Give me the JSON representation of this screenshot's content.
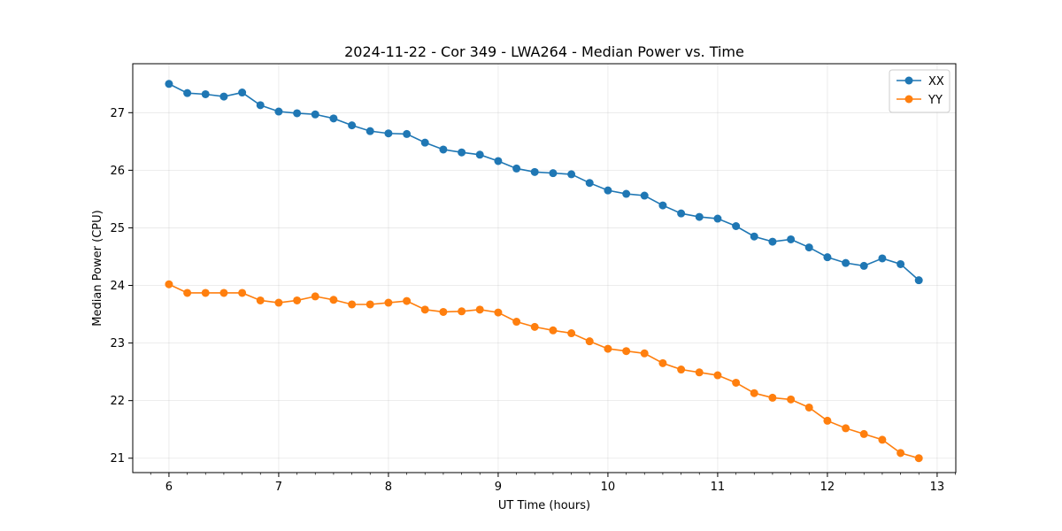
{
  "chart_data": {
    "type": "line",
    "title": "2024-11-22 - Cor 349 - LWA264 - Median Power vs. Time",
    "xlabel": "UT Time (hours)",
    "ylabel": "Median Power (CPU)",
    "xlim": [
      5.67,
      13.17
    ],
    "ylim": [
      20.75,
      27.85
    ],
    "xticks": [
      6,
      7,
      8,
      9,
      10,
      11,
      12,
      13
    ],
    "yticks": [
      21,
      22,
      23,
      24,
      25,
      26,
      27
    ],
    "grid": true,
    "legend_location": "upper right",
    "x": [
      6.0,
      6.167,
      6.333,
      6.5,
      6.667,
      6.833,
      7.0,
      7.167,
      7.333,
      7.5,
      7.667,
      7.833,
      8.0,
      8.167,
      8.333,
      8.5,
      8.667,
      8.833,
      9.0,
      9.167,
      9.333,
      9.5,
      9.667,
      9.833,
      10.0,
      10.167,
      10.333,
      10.5,
      10.667,
      10.833,
      11.0,
      11.167,
      11.333,
      11.5,
      11.667,
      11.833,
      12.0,
      12.167,
      12.333,
      12.5,
      12.667,
      12.833
    ],
    "series": [
      {
        "name": "XX",
        "color": "#1f77b4",
        "values": [
          27.5,
          27.34,
          27.32,
          27.28,
          27.35,
          27.13,
          27.02,
          26.99,
          26.97,
          26.9,
          26.78,
          26.68,
          26.64,
          26.63,
          26.48,
          26.36,
          26.31,
          26.27,
          26.16,
          26.03,
          25.97,
          25.95,
          25.93,
          25.78,
          25.65,
          25.59,
          25.56,
          25.39,
          25.25,
          25.19,
          25.16,
          25.03,
          24.85,
          24.76,
          24.8,
          24.66,
          24.49,
          24.39,
          24.34,
          24.47,
          24.37,
          24.09
        ]
      },
      {
        "name": "YY",
        "color": "#ff7f0e",
        "values": [
          24.02,
          23.87,
          23.87,
          23.87,
          23.87,
          23.74,
          23.7,
          23.74,
          23.81,
          23.75,
          23.67,
          23.67,
          23.7,
          23.73,
          23.58,
          23.54,
          23.55,
          23.58,
          23.53,
          23.37,
          23.28,
          23.22,
          23.17,
          23.03,
          22.9,
          22.86,
          22.82,
          22.65,
          22.54,
          22.49,
          22.44,
          22.31,
          22.13,
          22.05,
          22.02,
          21.88,
          21.65,
          21.52,
          21.42,
          21.32,
          21.09,
          21.0
        ]
      }
    ]
  }
}
